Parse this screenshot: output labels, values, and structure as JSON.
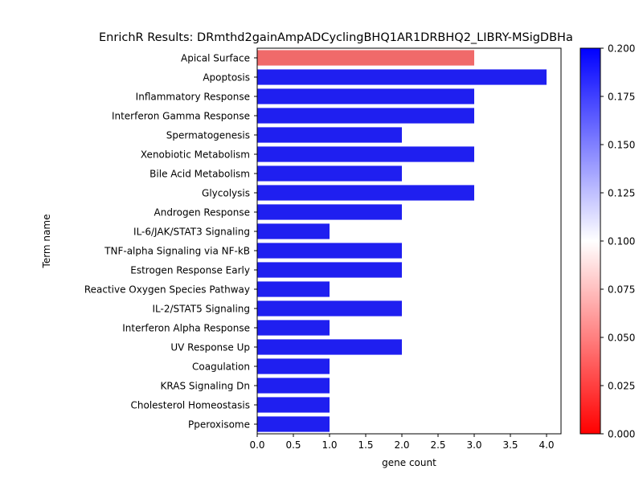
{
  "chart_data": {
    "type": "bar",
    "orientation": "horizontal",
    "title": "EnrichR Results: DRmthd2gainAmpADCyclingBHQ1AR1DRBHQ2_LIBRY-MSigDBHa",
    "xlabel": "gene count",
    "ylabel": "Term name",
    "xlim": [
      0,
      4.2
    ],
    "x_ticks": [
      "0.0",
      "0.5",
      "1.0",
      "1.5",
      "2.0",
      "2.5",
      "3.0",
      "3.5",
      "4.0"
    ],
    "categories": [
      "Apical Surface",
      "Apoptosis",
      "Inflammatory Response",
      "Interferon Gamma Response",
      "Spermatogenesis",
      "Xenobiotic Metabolism",
      "Bile Acid Metabolism",
      "Glycolysis",
      "Androgen Response",
      "IL-6/JAK/STAT3 Signaling",
      "TNF-alpha Signaling via NF-kB",
      "Estrogen Response Early",
      "Reactive Oxygen Species Pathway",
      "IL-2/STAT5 Signaling",
      "Interferon Alpha Response",
      "UV Response Up",
      "Coagulation",
      "KRAS Signaling Dn",
      "Cholesterol Homeostasis",
      "Pperoxisome"
    ],
    "values": [
      3,
      4,
      3,
      3,
      2,
      3,
      2,
      3,
      2,
      1,
      2,
      2,
      1,
      2,
      1,
      2,
      1,
      1,
      1,
      1
    ],
    "bar_colors": [
      "#f06a6a",
      "#1f1ff0",
      "#1f1ff0",
      "#1f1ff0",
      "#1f1ff0",
      "#1f1ff0",
      "#1f1ff0",
      "#1f1ff0",
      "#1f1ff0",
      "#1f1ff0",
      "#1f1ff0",
      "#1f1ff0",
      "#1f1ff0",
      "#1f1ff0",
      "#1f1ff0",
      "#1f1ff0",
      "#1f1ff0",
      "#1f1ff0",
      "#1f1ff0",
      "#1f1ff0"
    ],
    "grid": false,
    "colorbar": {
      "range": [
        0,
        0.2
      ],
      "ticks": [
        "0.000",
        "0.025",
        "0.050",
        "0.075",
        "0.100",
        "0.125",
        "0.150",
        "0.175",
        "0.200"
      ],
      "colors": [
        "#ff0000",
        "#ffffff",
        "#0000ff"
      ]
    }
  }
}
